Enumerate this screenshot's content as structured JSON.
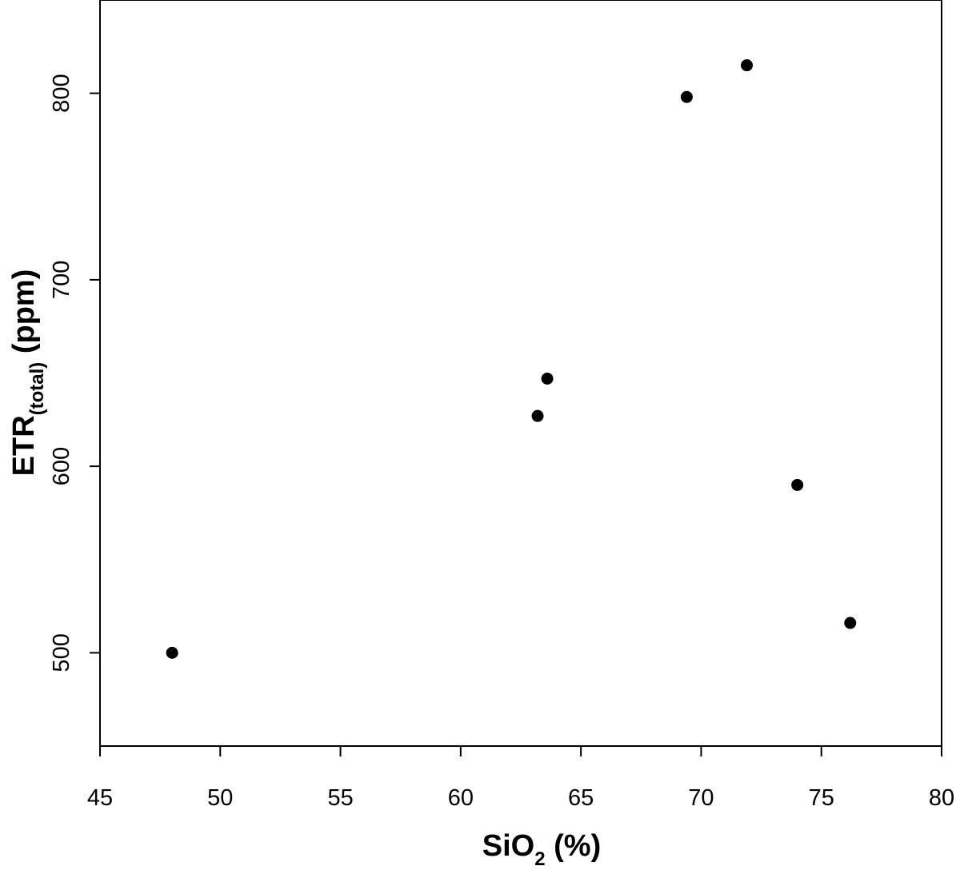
{
  "chart_data": {
    "type": "scatter",
    "title": "",
    "xlabel": {
      "main": "SiO",
      "sub": "2",
      "suffix": " (%)"
    },
    "ylabel": {
      "main": "ETR",
      "sub": "(total)",
      "suffix": " (ppm)"
    },
    "xlim": [
      45,
      80
    ],
    "ylim": [
      450,
      850
    ],
    "xticks": [
      45,
      50,
      55,
      60,
      65,
      70,
      75,
      80
    ],
    "yticks": [
      500,
      600,
      700,
      800
    ],
    "grid": false,
    "marker_color": "#000000",
    "points": [
      {
        "x": 48.0,
        "y": 500
      },
      {
        "x": 63.2,
        "y": 627
      },
      {
        "x": 63.6,
        "y": 647
      },
      {
        "x": 69.4,
        "y": 798
      },
      {
        "x": 71.9,
        "y": 815
      },
      {
        "x": 74.0,
        "y": 590
      },
      {
        "x": 76.2,
        "y": 516
      }
    ]
  }
}
